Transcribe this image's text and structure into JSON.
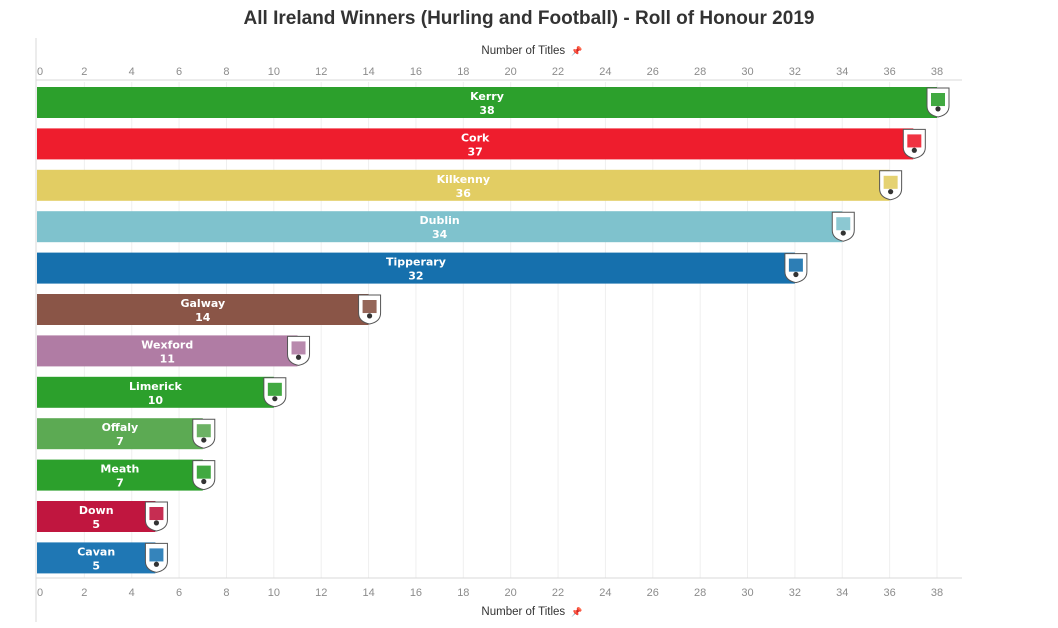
{
  "chart_data": {
    "type": "bar",
    "orientation": "horizontal",
    "title": "All Ireland Winners (Hurling and Football) - Roll of Honour  2019",
    "xlabel": "Number of Titles",
    "x_axis_icon": "pin-icon",
    "xlim": [
      0,
      38
    ],
    "ticks": [
      0,
      2,
      4,
      6,
      8,
      10,
      12,
      14,
      16,
      18,
      20,
      22,
      24,
      26,
      28,
      30,
      32,
      34,
      36,
      38
    ],
    "grid": true,
    "categories": [
      "Kerry",
      "Cork",
      "Kilkenny",
      "Dublin",
      "Tipperary",
      "Galway",
      "Wexford",
      "Limerick",
      "Offaly",
      "Meath",
      "Down",
      "Cavan"
    ],
    "values": [
      38,
      37,
      36,
      34,
      32,
      14,
      11,
      10,
      7,
      7,
      5,
      5
    ],
    "colors": [
      "#2ca02c",
      "#ee1d2d",
      "#e2cd63",
      "#7fc2cd",
      "#1670ad",
      "#8a5547",
      "#b07ca4",
      "#2ca02c",
      "#5caa53",
      "#2ca02c",
      "#c0163f",
      "#1f77b4"
    ],
    "crest_icons": [
      "kerry-crest-icon",
      "cork-crest-icon",
      "kilkenny-crest-icon",
      "dublin-crest-icon",
      "tipperary-crest-icon",
      "galway-crest-icon",
      "wexford-crest-icon",
      "limerick-crest-icon",
      "offaly-crest-icon",
      "meath-crest-icon",
      "down-crest-icon",
      "cavan-crest-icon"
    ]
  }
}
